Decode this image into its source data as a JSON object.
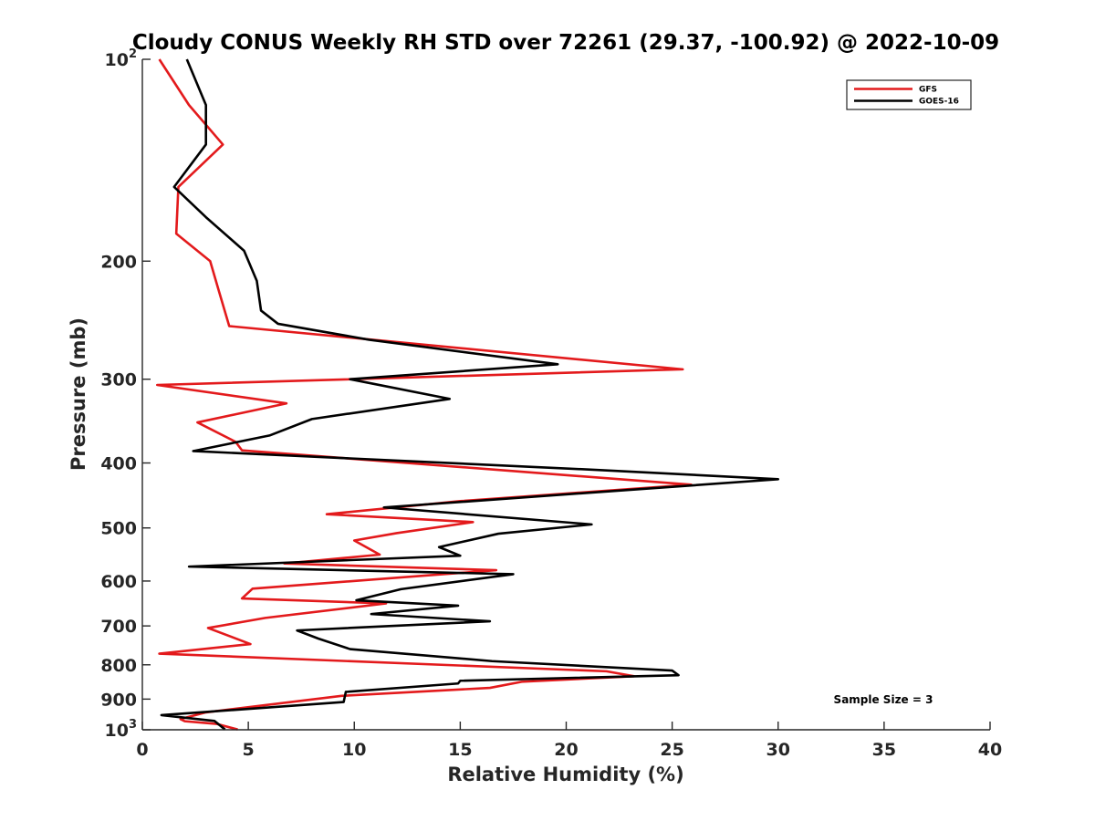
{
  "chart_data": {
    "type": "line",
    "title": "Cloudy CONUS Weekly RH STD over 72261 (29.37, -100.92) @ 2022-10-09",
    "xlabel": "Relative Humidity (%)",
    "ylabel": "Pressure (mb)",
    "xlim": [
      0,
      40
    ],
    "ylim": [
      100,
      1000
    ],
    "y_scale": "log",
    "y_inverted": true,
    "grid": false,
    "legend_position": "top-right",
    "x_ticks": [
      "0",
      "5",
      "10",
      "15",
      "20",
      "25",
      "30",
      "35",
      "40"
    ],
    "y_ticks": [
      {
        "value": 100,
        "label": "10",
        "sup": "2"
      },
      {
        "value": 200,
        "label": "200",
        "sup": ""
      },
      {
        "value": 300,
        "label": "300",
        "sup": ""
      },
      {
        "value": 400,
        "label": "400",
        "sup": ""
      },
      {
        "value": 500,
        "label": "500",
        "sup": ""
      },
      {
        "value": 600,
        "label": "600",
        "sup": ""
      },
      {
        "value": 700,
        "label": "700",
        "sup": ""
      },
      {
        "value": 800,
        "label": "800",
        "sup": ""
      },
      {
        "value": 900,
        "label": "900",
        "sup": ""
      },
      {
        "value": 1000,
        "label": "10",
        "sup": "3"
      }
    ],
    "annotation": "Sample Size = 3",
    "series": [
      {
        "name": "GFS",
        "color": "#e31a1c",
        "points": [
          [
            0.8,
            100
          ],
          [
            2.2,
            117
          ],
          [
            3.8,
            134
          ],
          [
            1.7,
            155
          ],
          [
            1.6,
            182
          ],
          [
            3.2,
            200
          ],
          [
            3.6,
            221
          ],
          [
            4.1,
            250
          ],
          [
            25.5,
            290
          ],
          [
            0.7,
            306
          ],
          [
            6.8,
            326
          ],
          [
            2.6,
            348
          ],
          [
            4.4,
            372
          ],
          [
            4.7,
            383
          ],
          [
            25.9,
            431
          ],
          [
            15.0,
            456
          ],
          [
            8.7,
            477
          ],
          [
            15.6,
            490
          ],
          [
            12.0,
            509
          ],
          [
            10.0,
            522
          ],
          [
            11.2,
            548
          ],
          [
            6.7,
            565
          ],
          [
            16.7,
            578
          ],
          [
            5.2,
            616
          ],
          [
            4.7,
            637
          ],
          [
            11.5,
            648
          ],
          [
            5.8,
            681
          ],
          [
            3.1,
            705
          ],
          [
            5.1,
            745
          ],
          [
            0.8,
            770
          ],
          [
            21.9,
            818
          ],
          [
            23.2,
            832
          ],
          [
            17.9,
            848
          ],
          [
            16.4,
            866
          ],
          [
            9.4,
            890
          ],
          [
            3.0,
            942
          ],
          [
            1.8,
            964
          ],
          [
            2.0,
            971
          ],
          [
            3.5,
            980
          ],
          [
            4.5,
            999
          ]
        ]
      },
      {
        "name": "GOES-16",
        "color": "#000000",
        "points": [
          [
            2.1,
            100
          ],
          [
            3.0,
            117
          ],
          [
            3.0,
            134
          ],
          [
            1.5,
            155
          ],
          [
            3.0,
            172
          ],
          [
            4.8,
            193
          ],
          [
            5.4,
            214
          ],
          [
            5.6,
            237
          ],
          [
            6.4,
            248
          ],
          [
            10.7,
            262
          ],
          [
            19.6,
            285
          ],
          [
            9.8,
            300
          ],
          [
            14.5,
            321
          ],
          [
            8.0,
            344
          ],
          [
            6.0,
            364
          ],
          [
            2.4,
            384
          ],
          [
            21.7,
            410
          ],
          [
            30.0,
            423
          ],
          [
            11.4,
            466
          ],
          [
            21.2,
            494
          ],
          [
            16.8,
            510
          ],
          [
            14.0,
            534
          ],
          [
            15.0,
            550
          ],
          [
            2.2,
            571
          ],
          [
            17.5,
            586
          ],
          [
            12.2,
            617
          ],
          [
            10.1,
            641
          ],
          [
            14.9,
            653
          ],
          [
            10.8,
            672
          ],
          [
            16.4,
            689
          ],
          [
            7.3,
            711
          ],
          [
            8.3,
            731
          ],
          [
            9.8,
            758
          ],
          [
            16.5,
            790
          ],
          [
            25.0,
            816
          ],
          [
            25.3,
            829
          ],
          [
            15.0,
            845
          ],
          [
            14.9,
            853
          ],
          [
            9.6,
            878
          ],
          [
            9.5,
            909
          ],
          [
            0.9,
            951
          ],
          [
            3.4,
            970
          ],
          [
            3.9,
            999
          ]
        ]
      }
    ]
  }
}
